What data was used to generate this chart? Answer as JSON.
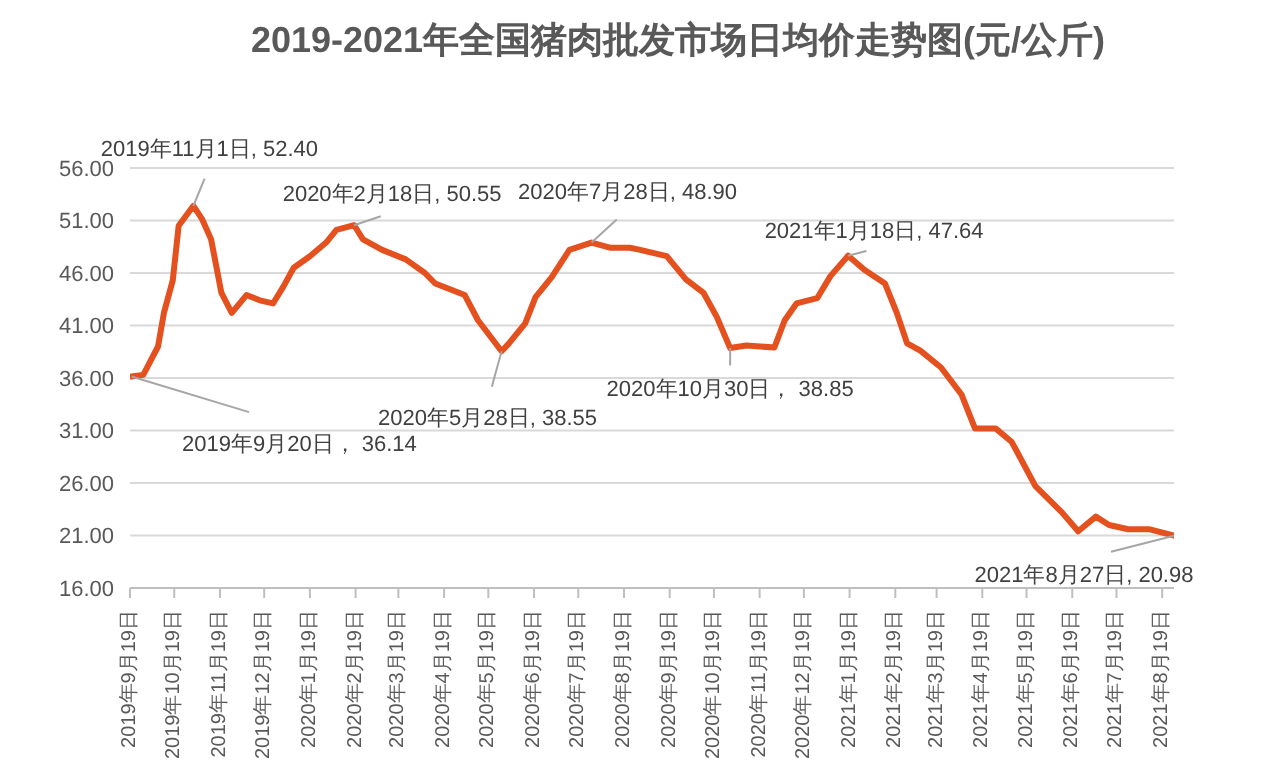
{
  "chart_data": {
    "type": "line",
    "title": "2019-2021年全国猪肉批发市场日均价走势图(元/公斤)",
    "x": [
      "2019-09-20",
      "2019-09-28",
      "2019-10-08",
      "2019-10-12",
      "2019-10-18",
      "2019-10-22",
      "2019-11-01",
      "2019-11-07",
      "2019-11-13",
      "2019-11-20",
      "2019-11-27",
      "2019-12-07",
      "2019-12-16",
      "2019-12-25",
      "2020-01-01",
      "2020-01-08",
      "2020-01-19",
      "2020-01-30",
      "2020-02-06",
      "2020-02-18",
      "2020-02-24",
      "2020-03-08",
      "2020-03-24",
      "2020-04-06",
      "2020-04-13",
      "2020-05-03",
      "2020-05-12",
      "2020-05-28",
      "2020-06-02",
      "2020-06-13",
      "2020-06-20",
      "2020-07-01",
      "2020-07-13",
      "2020-07-28",
      "2020-08-10",
      "2020-08-23",
      "2020-08-30",
      "2020-09-17",
      "2020-09-30",
      "2020-10-12",
      "2020-10-21",
      "2020-10-30",
      "2020-11-10",
      "2020-11-29",
      "2020-12-06",
      "2020-12-14",
      "2020-12-28",
      "2021-01-06",
      "2021-01-18",
      "2021-01-29",
      "2021-02-12",
      "2021-02-20",
      "2021-02-27",
      "2021-03-08",
      "2021-03-22",
      "2021-04-05",
      "2021-04-14",
      "2021-04-28",
      "2021-05-09",
      "2021-05-25",
      "2021-06-12",
      "2021-06-23",
      "2021-07-05",
      "2021-07-14",
      "2021-07-27",
      "2021-08-10",
      "2021-08-27"
    ],
    "series": [
      {
        "color": "#e4501e",
        "values": [
          36.14,
          36.3,
          39,
          42.2,
          45.3,
          50.5,
          52.4,
          51.1,
          49.2,
          44.1,
          42.2,
          43.9,
          43.4,
          43.1,
          44.7,
          46.5,
          47.6,
          48.9,
          50.1,
          50.55,
          49.2,
          48.2,
          47.3,
          46,
          45,
          43.9,
          41.5,
          38.55,
          39.3,
          41.2,
          43.7,
          45.6,
          48.2,
          48.9,
          48.4,
          48.4,
          48.2,
          47.6,
          45.4,
          44.1,
          41.8,
          38.85,
          39.1,
          38.9,
          41.5,
          43.1,
          43.6,
          45.7,
          47.64,
          46.3,
          45,
          42.2,
          39.3,
          38.6,
          37,
          34.4,
          31.2,
          31.2,
          29.9,
          25.7,
          23.2,
          21.4,
          22.8,
          22,
          21.6,
          21.6,
          20.98
        ]
      }
    ],
    "xlim": [
      "2019-09-19",
      "2021-08-27"
    ],
    "xticks": [
      {
        "value": "2019-09-19",
        "label": "2019年9月19日"
      },
      {
        "value": "2019-10-19",
        "label": "2019年10月19日"
      },
      {
        "value": "2019-11-19",
        "label": "2019年11月19日"
      },
      {
        "value": "2019-12-19",
        "label": "2019年12月19日"
      },
      {
        "value": "2020-01-19",
        "label": "2020年1月19日"
      },
      {
        "value": "2020-02-19",
        "label": "2020年2月19日"
      },
      {
        "value": "2020-03-19",
        "label": "2020年3月19日"
      },
      {
        "value": "2020-04-19",
        "label": "2020年4月19日"
      },
      {
        "value": "2020-05-19",
        "label": "2020年5月19日"
      },
      {
        "value": "2020-06-19",
        "label": "2020年6月19日"
      },
      {
        "value": "2020-07-19",
        "label": "2020年7月19日"
      },
      {
        "value": "2020-08-19",
        "label": "2020年8月19日"
      },
      {
        "value": "2020-09-19",
        "label": "2020年9月19日"
      },
      {
        "value": "2020-10-19",
        "label": "2020年10月19日"
      },
      {
        "value": "2020-11-19",
        "label": "2020年11月19日"
      },
      {
        "value": "2020-12-19",
        "label": "2020年12月19日"
      },
      {
        "value": "2021-01-19",
        "label": "2021年1月19日"
      },
      {
        "value": "2021-02-19",
        "label": "2021年2月19日"
      },
      {
        "value": "2021-03-19",
        "label": "2021年3月19日"
      },
      {
        "value": "2021-04-19",
        "label": "2021年4月19日"
      },
      {
        "value": "2021-05-19",
        "label": "2021年5月19日"
      },
      {
        "value": "2021-06-19",
        "label": "2021年6月19日"
      },
      {
        "value": "2021-07-19",
        "label": "2021年7月19日"
      },
      {
        "value": "2021-08-19",
        "label": "2021年8月19日"
      }
    ],
    "ylim": [
      16,
      56
    ],
    "yticks": [
      {
        "value": 16,
        "label": "16.00"
      },
      {
        "value": 21,
        "label": "21.00"
      },
      {
        "value": 26,
        "label": "26.00"
      },
      {
        "value": 31,
        "label": "31.00"
      },
      {
        "value": 36,
        "label": "36.00"
      },
      {
        "value": 41,
        "label": "41.00"
      },
      {
        "value": 46,
        "label": "46.00"
      },
      {
        "value": 51,
        "label": "51.00"
      },
      {
        "value": 56,
        "label": "56.00"
      }
    ],
    "grid": "y",
    "legend": false,
    "marker": "none",
    "line_style": "solid",
    "annotations": [
      {
        "text": "2019年9月20日，  36.14",
        "x": "2019-09-20",
        "y": 36.14
      },
      {
        "text": "2019年11月1日, 52.40",
        "x": "2019-11-01",
        "y": 52.4
      },
      {
        "text": "2020年2月18日, 50.55",
        "x": "2020-02-18",
        "y": 50.55
      },
      {
        "text": "2020年5月28日, 38.55",
        "x": "2020-05-28",
        "y": 38.55
      },
      {
        "text": "2020年7月28日, 48.90",
        "x": "2020-07-28",
        "y": 48.9
      },
      {
        "text": "2020年10月30日，  38.85",
        "x": "2020-10-30",
        "y": 38.85
      },
      {
        "text": "2021年1月18日, 47.64",
        "x": "2021-01-18",
        "y": 47.64
      },
      {
        "text": "2021年8月27日, 20.98",
        "x": "2021-08-27",
        "y": 20.98
      }
    ]
  }
}
